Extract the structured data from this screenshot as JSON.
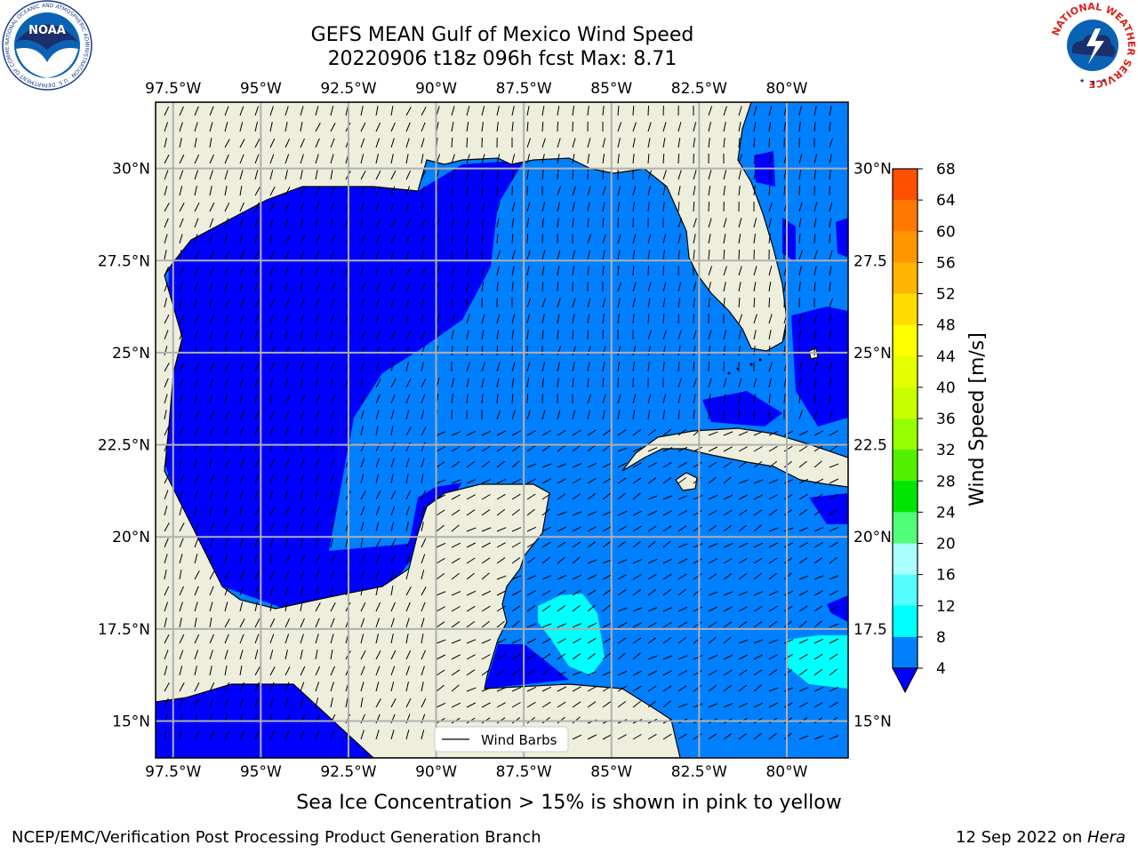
{
  "title": {
    "line1": "GEFS MEAN Gulf of Mexico Wind Speed",
    "line2": "20220906 t18z 096h fcst   Max: 8.71"
  },
  "map": {
    "lon_labels": [
      "97.5°W",
      "95°W",
      "92.5°W",
      "90°W",
      "87.5°W",
      "85°W",
      "82.5°W",
      "80°W"
    ],
    "lon_values": [
      -97.5,
      -95,
      -92.5,
      -90,
      -87.5,
      -85,
      -82.5,
      -80
    ],
    "lat_labels": [
      "30°N",
      "27.5°N",
      "25°N",
      "22.5°N",
      "20°N",
      "17.5°N",
      "15°N"
    ],
    "lat_values": [
      30,
      27.5,
      25,
      22.5,
      20,
      17.5,
      15
    ],
    "lat_labels_right": [
      "30°N",
      "27.5",
      "25°N",
      "22.5",
      "20°N",
      "17.5",
      "15°N"
    ],
    "lon_range": [
      -98,
      -78.25
    ],
    "lat_range": [
      14.0,
      31.8
    ],
    "grid": true,
    "legend_label": "Wind Barbs",
    "legend_position": "bottom-center",
    "colors": {
      "land": "#EEEEDC",
      "band_4_8": "#0080FF",
      "band_lt4": "#0000FF",
      "band_8_12": "#00FFFF",
      "grid": "#B0B0B0",
      "coast": "#000000"
    }
  },
  "colorbar": {
    "label": "Wind Speed [m/s]",
    "ticks": [
      "68",
      "64",
      "60",
      "56",
      "52",
      "48",
      "44",
      "40",
      "36",
      "32",
      "28",
      "24",
      "20",
      "16",
      "12",
      "8",
      "4"
    ],
    "tick_values": [
      68,
      64,
      60,
      56,
      52,
      48,
      44,
      40,
      36,
      32,
      28,
      24,
      20,
      16,
      12,
      8,
      4
    ],
    "colors_top_to_bottom": [
      "#FF0000",
      "#FF2800",
      "#FF5000",
      "#FF7800",
      "#FF9600",
      "#FFB400",
      "#FFDC00",
      "#FFFF00",
      "#E6FF00",
      "#C8FF00",
      "#96FF00",
      "#50F000",
      "#00E600",
      "#50FF78",
      "#AAFFFF",
      "#55FFFF",
      "#00FFFF",
      "#0080FF"
    ],
    "extend_color": "#0000FF"
  },
  "caption": "Sea Ice Concentration > 15% is shown in pink to yellow",
  "footer": {
    "left": "NCEP/EMC/Verification Post Processing Product Generation Branch",
    "right_date": "12 Sep 2022 on ",
    "right_machine": "Hera"
  },
  "logos": {
    "noaa_text": "NOAA",
    "noaa_ring": "NATIONAL OCEANIC AND ATMOSPHERIC ADMINISTRATION · U.S. DEPARTMENT OF COMMERCE",
    "nws_ring": "NATIONAL WEATHER SERVICE"
  }
}
